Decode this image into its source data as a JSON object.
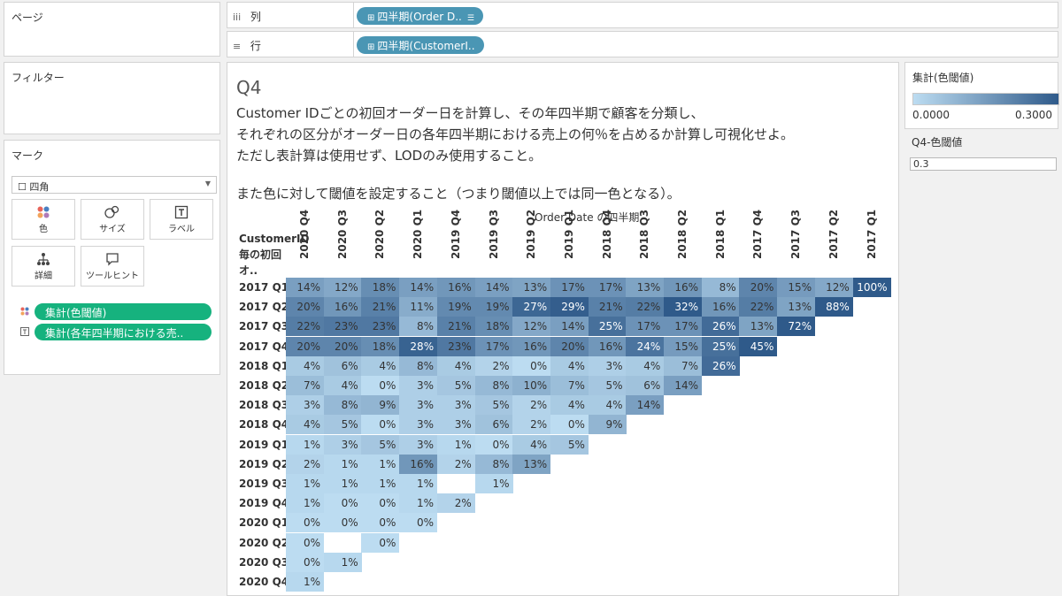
{
  "panels": {
    "pages": "ページ",
    "filters": "フィルター",
    "marks": "マーク"
  },
  "shelves": {
    "columns": {
      "icon": "iii",
      "label": "列",
      "pill": "四半期(Order D..",
      "pill_icon": "⊞"
    },
    "rows": {
      "icon": "≡",
      "label": "行",
      "pill": "四半期(CustomerI..",
      "pill_icon": "⊞"
    }
  },
  "marks": {
    "type": "四角",
    "buttons": [
      {
        "id": "color",
        "label": "色"
      },
      {
        "id": "size",
        "label": "サイズ"
      },
      {
        "id": "label",
        "label": "ラベル"
      },
      {
        "id": "detail",
        "label": "詳細"
      },
      {
        "id": "tooltip",
        "label": "ツールヒント"
      }
    ],
    "pills": [
      {
        "label": "集計(色閾値)",
        "type": "color"
      },
      {
        "label": "集計(各年四半期における売..",
        "type": "text"
      }
    ]
  },
  "viz": {
    "title": "Q4",
    "description": [
      "Customer IDごとの初回オーダー日を計算し、その年四半期で顧客を分類し、",
      "それぞれの区分がオーダー日の各年四半期における売上の何％を占めるか計算し可視化せよ。",
      "ただし表計算は使用せず、LODのみ使用すること。",
      "また色に対して閾値を設定すること（つまり閾値以上では同一色となる）。"
    ]
  },
  "legend": {
    "title": "集計(色閾値)",
    "min_label": "0.0000",
    "max_label": "0.3000",
    "colors": {
      "low": "#bcdcf1",
      "high": "#2f5a8a"
    }
  },
  "parameter": {
    "title": "Q4-色閾値",
    "value": "0.3"
  },
  "chart_data": {
    "type": "heatmap",
    "x_title": "Order Date の四半期",
    "row_title": "CustomerID毎の初回オ..",
    "color_threshold": 0.3,
    "columns": [
      "2020 Q4",
      "2020 Q3",
      "2020 Q2",
      "2020 Q1",
      "2019 Q4",
      "2019 Q3",
      "2019 Q2",
      "2019 Q1",
      "2018 Q4",
      "2018 Q3",
      "2018 Q2",
      "2018 Q1",
      "2017 Q4",
      "2017 Q3",
      "2017 Q2",
      "2017 Q1"
    ],
    "rows": [
      {
        "label": "2017 Q1",
        "values": [
          "14%",
          "12%",
          "18%",
          "14%",
          "16%",
          "14%",
          "13%",
          "17%",
          "17%",
          "13%",
          "16%",
          "8%",
          "20%",
          "15%",
          "12%",
          "100%"
        ]
      },
      {
        "label": "2017 Q2",
        "values": [
          "20%",
          "16%",
          "21%",
          "11%",
          "19%",
          "19%",
          "27%",
          "29%",
          "21%",
          "22%",
          "32%",
          "16%",
          "22%",
          "13%",
          "88%"
        ]
      },
      {
        "label": "2017 Q3",
        "values": [
          "22%",
          "23%",
          "23%",
          "8%",
          "21%",
          "18%",
          "12%",
          "14%",
          "25%",
          "17%",
          "17%",
          "26%",
          "13%",
          "72%"
        ]
      },
      {
        "label": "2017 Q4",
        "values": [
          "20%",
          "20%",
          "18%",
          "28%",
          "23%",
          "17%",
          "16%",
          "20%",
          "16%",
          "24%",
          "15%",
          "25%",
          "45%"
        ]
      },
      {
        "label": "2018 Q1",
        "values": [
          "4%",
          "6%",
          "4%",
          "8%",
          "4%",
          "2%",
          "0%",
          "4%",
          "3%",
          "4%",
          "7%",
          "26%"
        ]
      },
      {
        "label": "2018 Q2",
        "values": [
          "7%",
          "4%",
          "0%",
          "3%",
          "5%",
          "8%",
          "10%",
          "7%",
          "5%",
          "6%",
          "14%"
        ]
      },
      {
        "label": "2018 Q3",
        "values": [
          "3%",
          "8%",
          "9%",
          "3%",
          "3%",
          "5%",
          "2%",
          "4%",
          "4%",
          "14%"
        ]
      },
      {
        "label": "2018 Q4",
        "values": [
          "4%",
          "5%",
          "0%",
          "3%",
          "3%",
          "6%",
          "2%",
          "0%",
          "9%"
        ]
      },
      {
        "label": "2019 Q1",
        "values": [
          "1%",
          "3%",
          "5%",
          "3%",
          "1%",
          "0%",
          "4%",
          "5%"
        ]
      },
      {
        "label": "2019 Q2",
        "values": [
          "2%",
          "1%",
          "1%",
          "16%",
          "2%",
          "8%",
          "13%"
        ]
      },
      {
        "label": "2019 Q3",
        "values": [
          "1%",
          "1%",
          "1%",
          "1%",
          null,
          "1%"
        ]
      },
      {
        "label": "2019 Q4",
        "values": [
          "1%",
          "0%",
          "0%",
          "1%",
          "2%"
        ]
      },
      {
        "label": "2020 Q1",
        "values": [
          "0%",
          "0%",
          "0%",
          "0%"
        ]
      },
      {
        "label": "2020 Q2",
        "values": [
          "0%",
          null,
          "0%"
        ]
      },
      {
        "label": "2020 Q3",
        "values": [
          "0%",
          "1%"
        ]
      },
      {
        "label": "2020 Q4",
        "values": [
          "1%"
        ]
      }
    ]
  }
}
